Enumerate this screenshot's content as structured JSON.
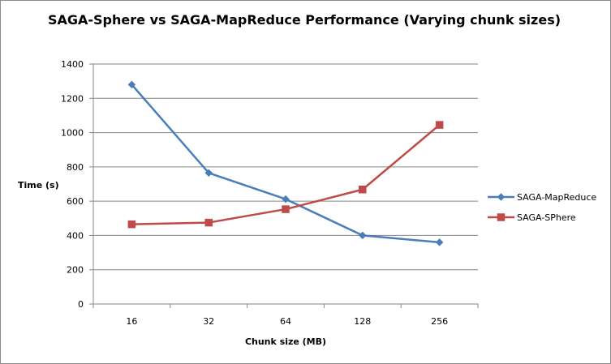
{
  "chart_data": {
    "type": "line",
    "title": "SAGA-Sphere vs SAGA-MapReduce Performance (Varying chunk sizes)",
    "xlabel": "Chunk size  (MB)",
    "ylabel": "Time (s)",
    "categories": [
      "16",
      "32",
      "64",
      "128",
      "256"
    ],
    "ylim": [
      0,
      1400
    ],
    "yticks": [
      0,
      200,
      400,
      600,
      800,
      1000,
      1200,
      1400
    ],
    "grid": true,
    "legend_position": "right",
    "series": [
      {
        "name": "SAGA-MapReduce",
        "values": [
          1280,
          765,
          612,
          400,
          360
        ],
        "color": "#4a7ebb",
        "marker": "diamond"
      },
      {
        "name": "SAGA-SPhere",
        "values": [
          465,
          475,
          553,
          668,
          1045
        ],
        "color": "#be4b48",
        "marker": "square"
      }
    ]
  }
}
